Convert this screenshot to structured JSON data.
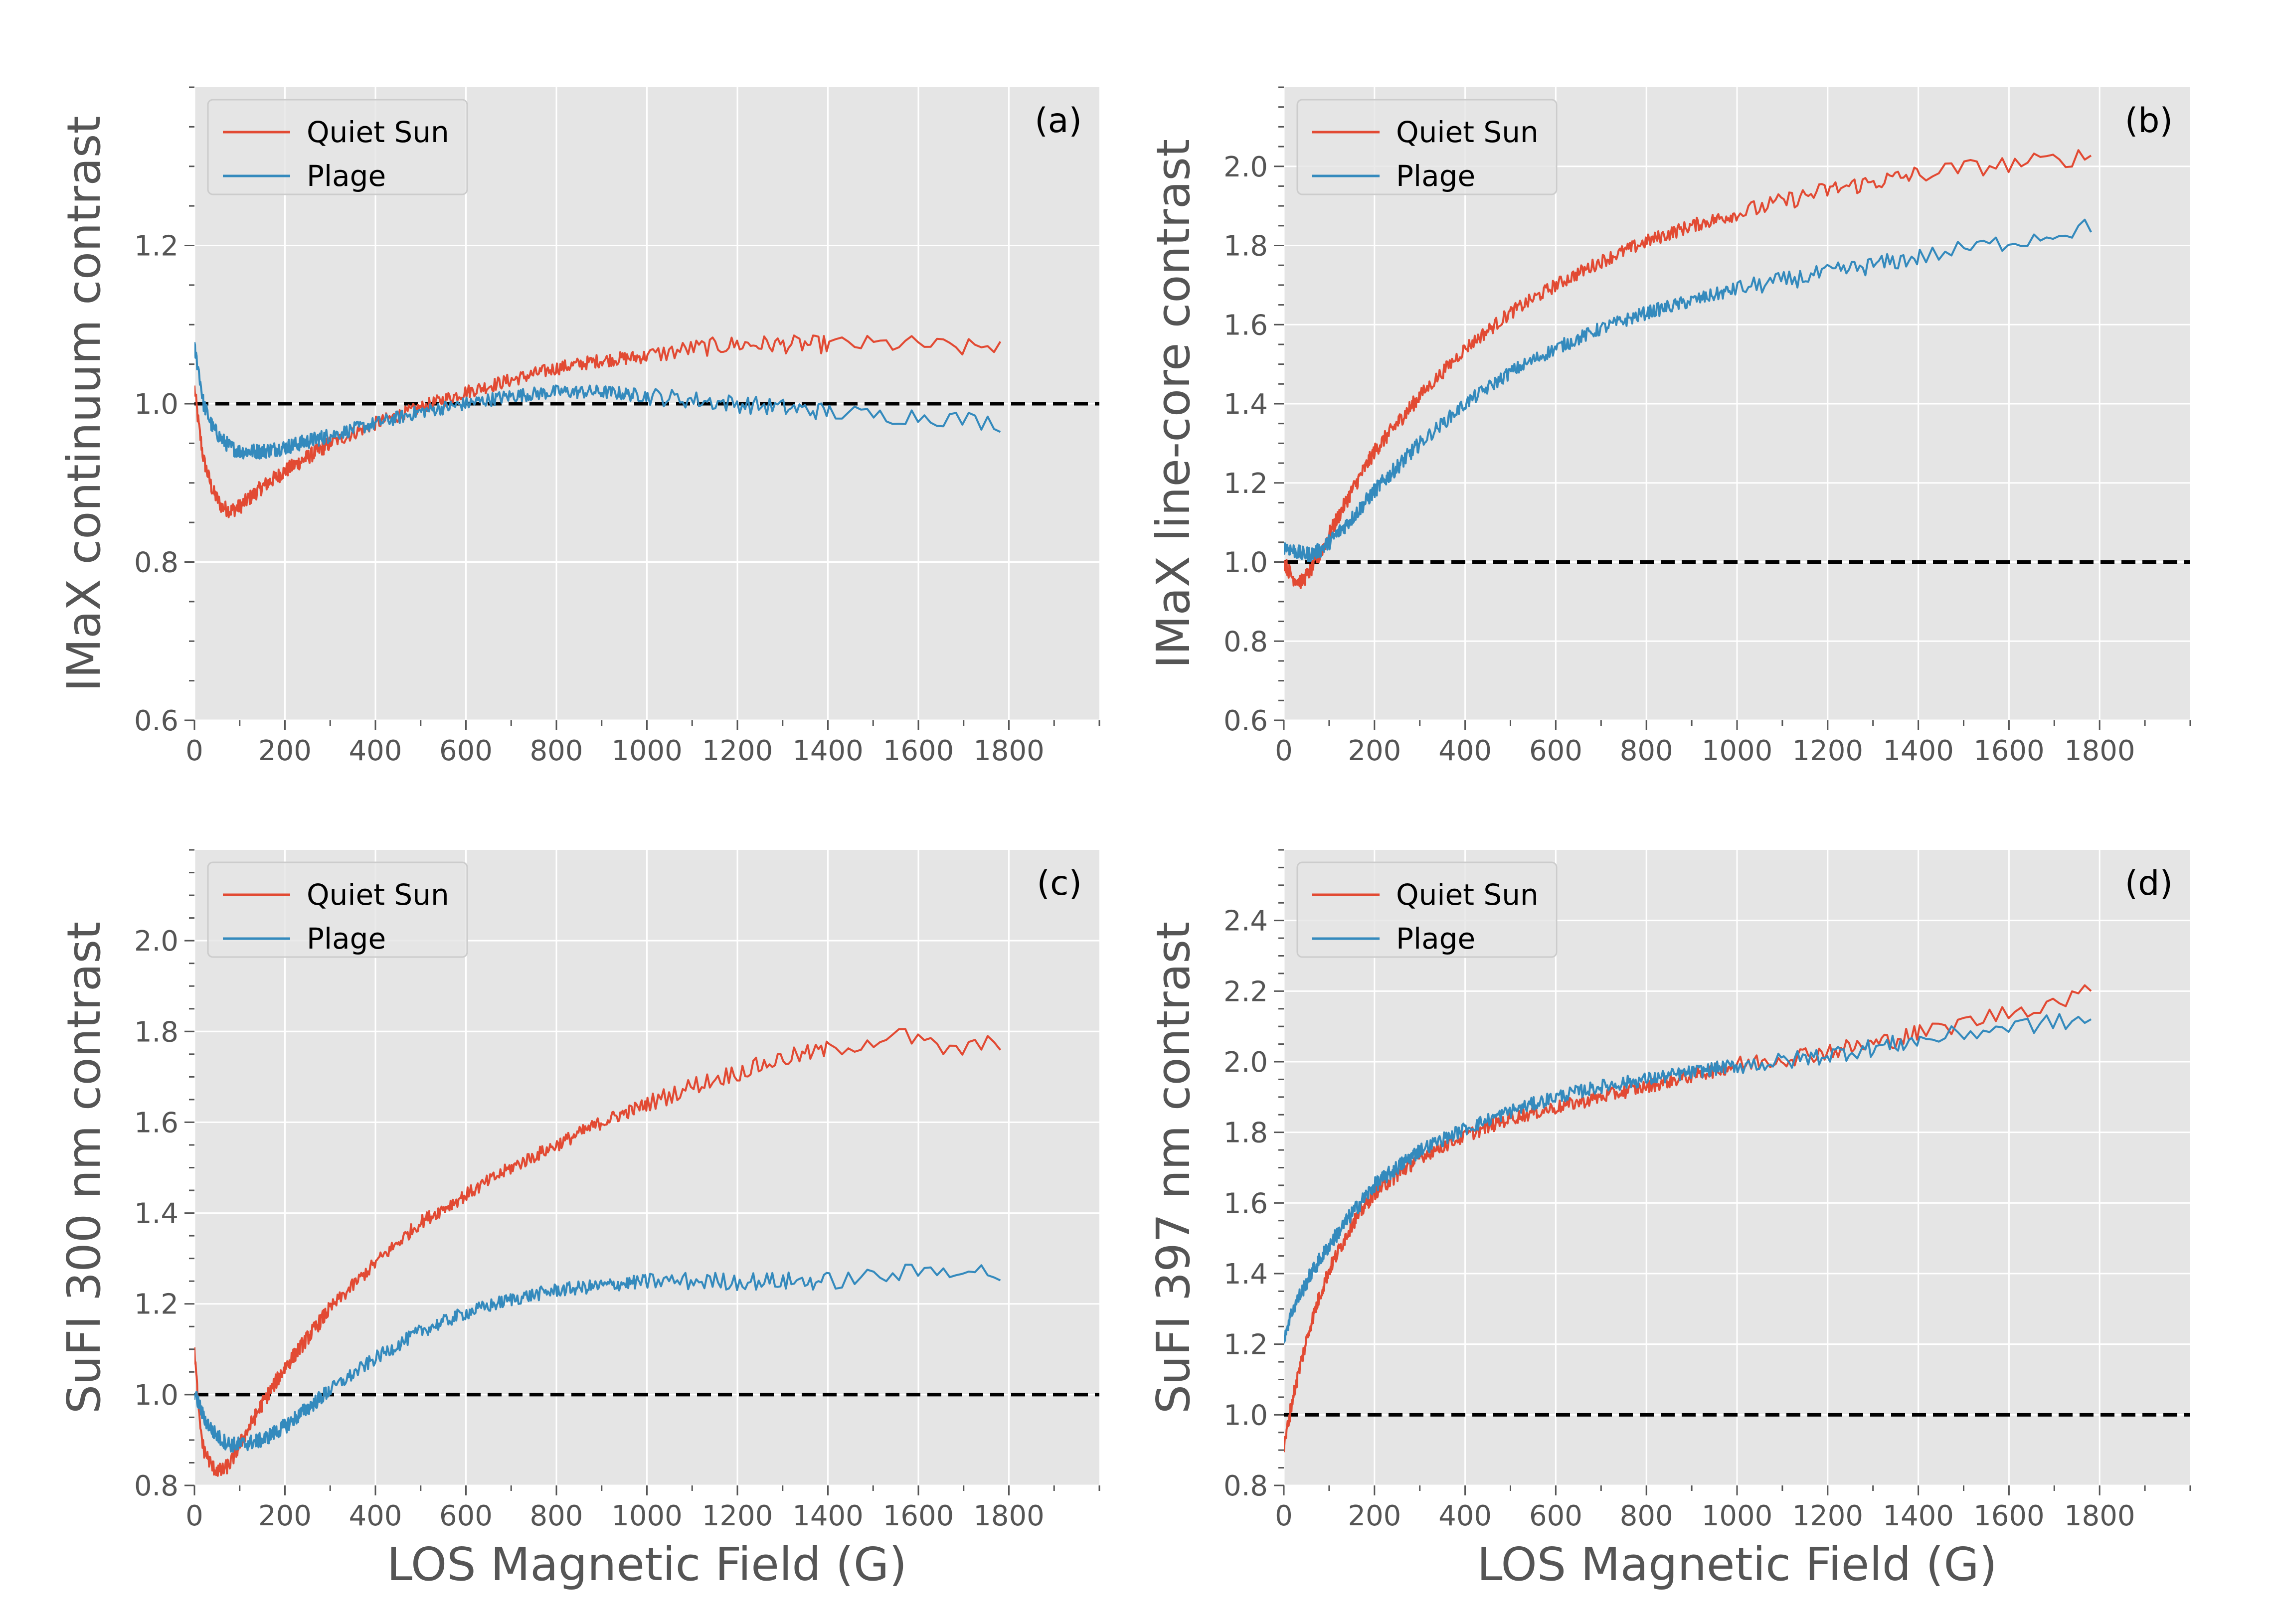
{
  "colors": {
    "quiet_sun": "#E24A33",
    "plage": "#348ABD",
    "background": "#E5E5E5",
    "grid": "#FFFFFF",
    "reference_line": "#000000"
  },
  "chart_data": [
    {
      "type": "line",
      "panel_label": "(a)",
      "ylabel": "IMaX continuum contrast",
      "xlabel": "",
      "xlim": [
        0,
        2000
      ],
      "ylim": [
        0.6,
        1.4
      ],
      "xticks": [
        0,
        200,
        400,
        600,
        800,
        1000,
        1200,
        1400,
        1600,
        1800
      ],
      "xtick_labels": [
        "0",
        "200",
        "400",
        "600",
        "800",
        "1000",
        "1200",
        "1400",
        "1600",
        "1800"
      ],
      "yticks": [
        0.6,
        0.8,
        1.0,
        1.2
      ],
      "ytick_labels": [
        "0.6",
        "0.8",
        "1.0",
        "1.2"
      ],
      "reference_y": 1.0,
      "legend": [
        "Quiet Sun",
        "Plage"
      ],
      "series": [
        {
          "name": "Quiet Sun",
          "x": [
            0,
            10,
            20,
            40,
            60,
            80,
            100,
            150,
            200,
            300,
            400,
            500,
            600,
            700,
            800,
            900,
            1000,
            1100,
            1200,
            1300,
            1400,
            1500,
            1600,
            1700,
            1790
          ],
          "y": [
            1.02,
            0.97,
            0.93,
            0.89,
            0.87,
            0.865,
            0.87,
            0.895,
            0.915,
            0.95,
            0.975,
            0.995,
            1.015,
            1.03,
            1.045,
            1.055,
            1.06,
            1.07,
            1.075,
            1.075,
            1.075,
            1.075,
            1.075,
            1.07,
            1.075
          ]
        },
        {
          "name": "Plage",
          "x": [
            0,
            10,
            20,
            40,
            60,
            80,
            100,
            150,
            200,
            300,
            400,
            500,
            600,
            700,
            800,
            900,
            1000,
            1100,
            1200,
            1300,
            1400,
            1500,
            1600,
            1700,
            1790
          ],
          "y": [
            1.07,
            1.04,
            1.0,
            0.97,
            0.955,
            0.945,
            0.94,
            0.94,
            0.945,
            0.96,
            0.975,
            0.99,
            1.0,
            1.01,
            1.015,
            1.015,
            1.01,
            1.005,
            1.0,
            0.995,
            0.99,
            0.985,
            0.985,
            0.98,
            0.975
          ]
        }
      ]
    },
    {
      "type": "line",
      "panel_label": "(b)",
      "ylabel": "IMaX line-core contrast",
      "xlabel": "",
      "xlim": [
        0,
        2000
      ],
      "ylim": [
        0.6,
        2.2
      ],
      "xticks": [
        0,
        200,
        400,
        600,
        800,
        1000,
        1200,
        1400,
        1600,
        1800
      ],
      "xtick_labels": [
        "0",
        "200",
        "400",
        "600",
        "800",
        "1000",
        "1200",
        "1400",
        "1600",
        "1800"
      ],
      "yticks": [
        0.6,
        0.8,
        1.0,
        1.2,
        1.4,
        1.6,
        1.8,
        2.0
      ],
      "ytick_labels": [
        "0.6",
        "0.8",
        "1.0",
        "1.2",
        "1.4",
        "1.6",
        "1.8",
        "2.0"
      ],
      "reference_y": 1.0,
      "legend": [
        "Quiet Sun",
        "Plage"
      ],
      "series": [
        {
          "name": "Quiet Sun",
          "x": [
            0,
            20,
            40,
            60,
            80,
            100,
            150,
            200,
            300,
            400,
            500,
            600,
            700,
            800,
            900,
            1000,
            1100,
            1200,
            1300,
            1400,
            1500,
            1600,
            1700,
            1790
          ],
          "y": [
            1.0,
            0.96,
            0.95,
            0.98,
            1.02,
            1.07,
            1.18,
            1.28,
            1.42,
            1.54,
            1.63,
            1.7,
            1.76,
            1.81,
            1.85,
            1.88,
            1.91,
            1.94,
            1.96,
            1.98,
            1.995,
            2.005,
            2.015,
            2.03
          ]
        },
        {
          "name": "Plage",
          "x": [
            0,
            20,
            40,
            60,
            80,
            100,
            150,
            200,
            300,
            400,
            500,
            600,
            700,
            800,
            900,
            1000,
            1100,
            1200,
            1300,
            1400,
            1500,
            1600,
            1700,
            1790
          ],
          "y": [
            1.04,
            1.03,
            1.02,
            1.02,
            1.03,
            1.05,
            1.11,
            1.18,
            1.3,
            1.4,
            1.48,
            1.54,
            1.59,
            1.63,
            1.66,
            1.69,
            1.71,
            1.73,
            1.75,
            1.77,
            1.79,
            1.81,
            1.83,
            1.85
          ]
        }
      ]
    },
    {
      "type": "line",
      "panel_label": "(c)",
      "ylabel": "SuFI 300 nm contrast",
      "xlabel": "LOS Magnetic Field (G)",
      "xlim": [
        0,
        2000
      ],
      "ylim": [
        0.8,
        2.2
      ],
      "xticks": [
        0,
        200,
        400,
        600,
        800,
        1000,
        1200,
        1400,
        1600,
        1800
      ],
      "xtick_labels": [
        "0",
        "200",
        "400",
        "600",
        "800",
        "1000",
        "1200",
        "1400",
        "1600",
        "1800"
      ],
      "yticks": [
        0.8,
        1.0,
        1.2,
        1.4,
        1.6,
        1.8,
        2.0
      ],
      "ytick_labels": [
        "0.8",
        "1.0",
        "1.2",
        "1.4",
        "1.6",
        "1.8",
        "2.0"
      ],
      "reference_y": 1.0,
      "legend": [
        "Quiet Sun",
        "Plage"
      ],
      "series": [
        {
          "name": "Quiet Sun",
          "x": [
            0,
            10,
            20,
            40,
            60,
            80,
            100,
            150,
            200,
            300,
            400,
            500,
            600,
            700,
            800,
            900,
            1000,
            1100,
            1200,
            1300,
            1400,
            1500,
            1550,
            1600,
            1650,
            1700,
            1790
          ],
          "y": [
            1.1,
            0.95,
            0.88,
            0.84,
            0.83,
            0.85,
            0.89,
            0.98,
            1.06,
            1.19,
            1.29,
            1.38,
            1.44,
            1.5,
            1.55,
            1.6,
            1.64,
            1.68,
            1.71,
            1.74,
            1.76,
            1.78,
            1.795,
            1.78,
            1.76,
            1.76,
            1.78
          ]
        },
        {
          "name": "Plage",
          "x": [
            0,
            10,
            20,
            40,
            60,
            80,
            100,
            150,
            200,
            300,
            400,
            500,
            600,
            700,
            800,
            900,
            1000,
            1100,
            1200,
            1300,
            1400,
            1500,
            1600,
            1700,
            1790
          ],
          "y": [
            1.0,
            0.98,
            0.95,
            0.92,
            0.9,
            0.89,
            0.89,
            0.9,
            0.93,
            1.01,
            1.08,
            1.14,
            1.18,
            1.21,
            1.23,
            1.24,
            1.25,
            1.25,
            1.25,
            1.25,
            1.25,
            1.26,
            1.27,
            1.28,
            1.26
          ]
        }
      ]
    },
    {
      "type": "line",
      "panel_label": "(d)",
      "ylabel": "SuFI 397 nm contrast",
      "xlabel": "LOS Magnetic Field (G)",
      "xlim": [
        0,
        2000
      ],
      "ylim": [
        0.8,
        2.6
      ],
      "xticks": [
        0,
        200,
        400,
        600,
        800,
        1000,
        1200,
        1400,
        1600,
        1800
      ],
      "xtick_labels": [
        "0",
        "200",
        "400",
        "600",
        "800",
        "1000",
        "1200",
        "1400",
        "1600",
        "1800"
      ],
      "yticks": [
        0.8,
        1.0,
        1.2,
        1.4,
        1.6,
        1.8,
        2.0,
        2.2,
        2.4
      ],
      "ytick_labels": [
        "0.8",
        "1.0",
        "1.2",
        "1.4",
        "1.6",
        "1.8",
        "2.0",
        "2.2",
        "2.4"
      ],
      "reference_y": 1.0,
      "legend": [
        "Quiet Sun",
        "Plage"
      ],
      "series": [
        {
          "name": "Quiet Sun",
          "x": [
            0,
            10,
            20,
            40,
            60,
            80,
            100,
            150,
            200,
            300,
            400,
            500,
            600,
            700,
            800,
            900,
            1000,
            1100,
            1200,
            1300,
            1400,
            1500,
            1600,
            1700,
            1790
          ],
          "y": [
            0.9,
            0.98,
            1.05,
            1.16,
            1.26,
            1.34,
            1.41,
            1.54,
            1.63,
            1.73,
            1.79,
            1.84,
            1.87,
            1.9,
            1.93,
            1.96,
            1.99,
            2.01,
            2.03,
            2.05,
            2.08,
            2.11,
            2.14,
            2.17,
            2.2
          ]
        },
        {
          "name": "Plage",
          "x": [
            0,
            10,
            20,
            40,
            60,
            80,
            100,
            150,
            200,
            300,
            400,
            500,
            600,
            700,
            800,
            900,
            1000,
            1100,
            1200,
            1300,
            1400,
            1500,
            1600,
            1700,
            1790
          ],
          "y": [
            1.22,
            1.26,
            1.3,
            1.35,
            1.4,
            1.44,
            1.48,
            1.57,
            1.65,
            1.75,
            1.81,
            1.86,
            1.9,
            1.93,
            1.95,
            1.97,
            1.99,
            2.0,
            2.02,
            2.04,
            2.06,
            2.08,
            2.1,
            2.11,
            2.12
          ]
        }
      ]
    }
  ]
}
